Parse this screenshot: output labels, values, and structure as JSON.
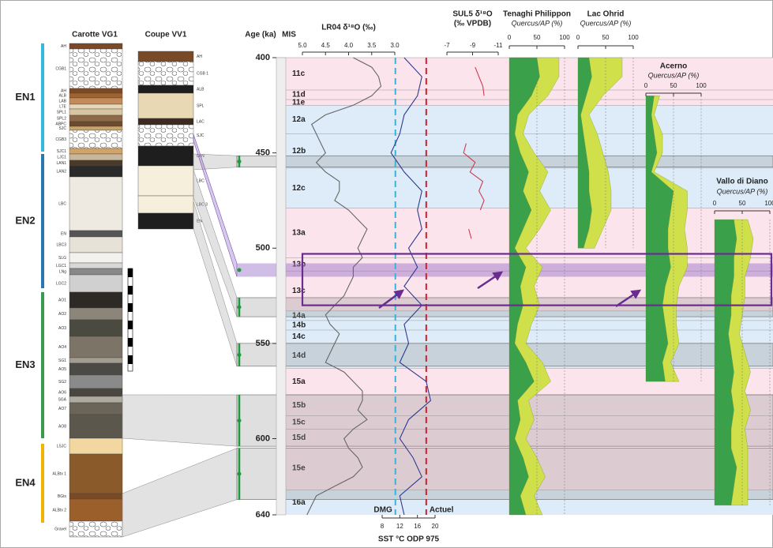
{
  "vg1": {
    "title": "Carotte VG1",
    "layers": [
      "AH",
      "CGB1",
      "AH",
      "ALB",
      "LAB",
      "LTE",
      "SPL1",
      "SPL2",
      "ABPC",
      "SJC",
      "CGB3",
      "SJC1",
      "LJC1",
      "LAN1",
      "LAN2",
      "LBC",
      "EN",
      "LBC3",
      "SLG",
      "LGC1",
      "LNg",
      "LGC2",
      "AO1",
      "AO2",
      "AO3",
      "AO4",
      "SG1",
      "AO5",
      "SG2",
      "AO6",
      "SGA",
      "AO7",
      "AO8",
      "LSJC",
      "ALBtx 1",
      "BGtx",
      "ALBtx 2",
      "Gravel"
    ]
  },
  "vv1": {
    "title": "Coupe VV1",
    "layers": [
      "AH",
      "CGB 1",
      "ALB",
      "SPL",
      "LAC",
      "SJC",
      "LAN",
      "LBC",
      "LBC 3",
      "EN"
    ]
  },
  "episodes": [
    {
      "label": "EN1",
      "color": "#35b8e0"
    },
    {
      "label": "EN2",
      "color": "#2a78b3"
    },
    {
      "label": "EN3",
      "color": "#3a9a50"
    },
    {
      "label": "EN4",
      "color": "#f0b400"
    }
  ],
  "chart_data": {
    "type": "line",
    "ylabel": "Age (ka)",
    "ylim": [
      400,
      640
    ],
    "yticks": [
      400,
      450,
      500,
      550,
      600,
      640
    ],
    "mis_label": "MIS",
    "mis": [
      {
        "label": "11c",
        "start": 400,
        "end": 417
      },
      {
        "label": "11d",
        "start": 417,
        "end": 422
      },
      {
        "label": "11e",
        "start": 422,
        "end": 425
      },
      {
        "label": "12a",
        "start": 425,
        "end": 440
      },
      {
        "label": "12b",
        "start": 440,
        "end": 458
      },
      {
        "label": "12c",
        "start": 458,
        "end": 479
      },
      {
        "label": "13a",
        "start": 479,
        "end": 505
      },
      {
        "label": "13b",
        "start": 505,
        "end": 512
      },
      {
        "label": "13c",
        "start": 512,
        "end": 533
      },
      {
        "label": "14a",
        "start": 533,
        "end": 538
      },
      {
        "label": "14b",
        "start": 538,
        "end": 543
      },
      {
        "label": "14c",
        "start": 543,
        "end": 550
      },
      {
        "label": "14d",
        "start": 550,
        "end": 563
      },
      {
        "label": "15a",
        "start": 563,
        "end": 577
      },
      {
        "label": "15b",
        "start": 577,
        "end": 588
      },
      {
        "label": "15c",
        "start": 588,
        "end": 595
      },
      {
        "label": "15d",
        "start": 595,
        "end": 604
      },
      {
        "label": "15e",
        "start": 604,
        "end": 627
      },
      {
        "label": "16a",
        "start": 627,
        "end": 640
      }
    ],
    "tie_bands": [
      [
        451.5,
        457.5
      ],
      [
        526,
        536
      ],
      [
        550,
        562
      ],
      [
        577,
        604
      ],
      [
        605,
        632
      ]
    ],
    "highlight_band": [
      508,
      515
    ],
    "highlight_box": [
      503,
      530
    ],
    "panels": [
      {
        "type": "line",
        "title": "LR04 δ¹⁸O (‰)",
        "color": "#666666",
        "xlim": [
          5,
          3
        ],
        "xticks": [
          {
            "value": 5,
            "label": "5.0"
          },
          4.5,
          {
            "value": 4,
            "label": "4.0"
          },
          3.5,
          {
            "value": 3,
            "label": "3.0"
          }
        ],
        "ages": [
          400,
          405,
          410,
          415,
          420,
          425,
          430,
          435,
          440,
          445,
          450,
          455,
          460,
          465,
          470,
          475,
          480,
          485,
          490,
          495,
          500,
          505,
          510,
          515,
          520,
          525,
          530,
          535,
          540,
          545,
          550,
          555,
          560,
          565,
          570,
          575,
          580,
          585,
          590,
          595,
          600,
          605,
          610,
          615,
          620,
          625,
          630,
          635,
          640
        ],
        "values": [
          3.9,
          3.5,
          3.35,
          3.3,
          3.5,
          3.9,
          4.5,
          4.8,
          4.7,
          4.6,
          4.5,
          4.7,
          4.5,
          4.2,
          4.2,
          4.3,
          4.0,
          3.8,
          3.6,
          3.7,
          3.8,
          3.7,
          3.9,
          3.9,
          4.0,
          4.1,
          4.3,
          4.5,
          4.4,
          4.2,
          4.3,
          4.4,
          4.5,
          4.1,
          3.9,
          3.7,
          3.7,
          3.8,
          3.6,
          3.9,
          4.1,
          4.0,
          3.8,
          3.7,
          3.9,
          4.3,
          4.7,
          4.8,
          4.9
        ]
      },
      {
        "type": "line",
        "title": "SUL5  δ¹⁸O",
        "subtitle": "(‰ VPDB)",
        "color": "#d23a50",
        "xlim": [
          -7,
          -11
        ],
        "xticks": [
          -7,
          -9,
          -11
        ],
        "ages": [
          405,
          410,
          415,
          420,
          425,
          430,
          435,
          440,
          445,
          450,
          455,
          460,
          465,
          470,
          475,
          480,
          485,
          490,
          495
        ],
        "values": [
          -9.2,
          -9.5,
          -9.8,
          -9.9,
          null,
          null,
          null,
          null,
          -8.5,
          -8.3,
          -9.2,
          -8.8,
          -9.8,
          -9.5,
          -9.9,
          -9.6,
          null,
          -8.7,
          -8.9
        ]
      },
      {
        "type": "line",
        "title": "SST °C ODP 975",
        "color": "#2d3a8f",
        "xlim": [
          8,
          20
        ],
        "xticks": [
          8,
          12,
          16,
          20
        ],
        "refs": [
          {
            "label": "DMG",
            "value": 11,
            "color": "#3bb3d9"
          },
          {
            "label": "Actuel",
            "value": 18,
            "color": "#d0202a"
          }
        ],
        "ages": [
          400,
          410,
          420,
          430,
          440,
          450,
          460,
          470,
          480,
          490,
          500,
          510,
          520,
          530,
          540,
          550,
          560,
          570,
          580,
          590,
          600,
          610,
          620,
          630,
          640
        ],
        "values": [
          13,
          17,
          16,
          13,
          12,
          10,
          13,
          17,
          16,
          17,
          14,
          16,
          13,
          17,
          13,
          14,
          12,
          18,
          19,
          14,
          12,
          15,
          17,
          12,
          13
        ]
      },
      {
        "type": "area",
        "title": "Tenaghi Philippon",
        "subtitle": "Quercus/AP (%)",
        "xlim": [
          0,
          100
        ],
        "xticks": [
          0,
          50,
          100
        ],
        "ages": [
          400,
          410,
          420,
          430,
          440,
          450,
          460,
          470,
          480,
          490,
          500,
          510,
          520,
          530,
          540,
          550,
          560,
          570,
          580,
          590,
          600,
          610,
          620,
          630,
          640
        ],
        "series": [
          {
            "color": "#3aa04a",
            "values": [
              50,
              55,
              40,
              15,
              10,
              20,
              35,
              25,
              40,
              25,
              10,
              30,
              20,
              25,
              15,
              10,
              30,
              45,
              15,
              20,
              10,
              25,
              35,
              20,
              30
            ]
          },
          {
            "color": "#cfe04a",
            "values": [
              40,
              35,
              30,
              20,
              15,
              25,
              35,
              30,
              35,
              30,
              20,
              30,
              25,
              30,
              25,
              20,
              30,
              30,
              20,
              25,
              20,
              25,
              30,
              25,
              30
            ]
          }
        ]
      },
      {
        "type": "area",
        "title": "Lac Ohrid",
        "subtitle": "Quercus/AP (%)",
        "xlim": [
          0,
          100
        ],
        "xticks": [
          0,
          50,
          100
        ],
        "ages": [
          400,
          410,
          420,
          430,
          440,
          450,
          460,
          470,
          480,
          490,
          500
        ],
        "series": [
          {
            "color": "#3aa04a",
            "values": [
              20,
              25,
              15,
              5,
              10,
              15,
              20,
              20,
              25,
              20,
              10
            ]
          },
          {
            "color": "#cfe04a",
            "values": [
              60,
              55,
              30,
              15,
              25,
              30,
              35,
              40,
              35,
              25,
              20
            ]
          }
        ]
      },
      {
        "type": "area",
        "title": "Acerno",
        "subtitle": "Quercus/AP (%)",
        "xlim": [
          0,
          100
        ],
        "xticks": [
          0,
          50,
          100
        ],
        "ages": [
          420,
          430,
          440,
          450,
          460,
          470,
          480,
          490,
          500,
          510,
          520,
          530,
          540,
          550,
          560,
          570
        ],
        "series": [
          {
            "color": "#3aa04a",
            "values": [
              15,
              10,
              15,
              20,
              10,
              50,
              45,
              40,
              40,
              45,
              35,
              30,
              35,
              40,
              30,
              35
            ]
          },
          {
            "color": "#cfe04a",
            "values": [
              10,
              5,
              15,
              10,
              5,
              25,
              30,
              30,
              35,
              30,
              25,
              25,
              20,
              20,
              15,
              25
            ]
          }
        ]
      },
      {
        "type": "area",
        "title": "Vallo di Diano",
        "subtitle": "Quercus/AP (%)",
        "xlim": [
          0,
          100
        ],
        "xticks": [
          0,
          50,
          100
        ],
        "ages": [
          485,
          495,
          505,
          515,
          525,
          535,
          545,
          555,
          565,
          575,
          585,
          595,
          605,
          615,
          625,
          635
        ],
        "series": [
          {
            "color": "#3aa04a",
            "values": [
              35,
              40,
              35,
              35,
              30,
              30,
              25,
              30,
              35,
              30,
              35,
              30,
              30,
              40,
              35,
              30
            ]
          },
          {
            "color": "#cfe04a",
            "values": [
              25,
              30,
              30,
              20,
              25,
              20,
              20,
              25,
              30,
              25,
              30,
              25,
              30,
              20,
              25,
              30
            ]
          }
        ]
      }
    ]
  }
}
